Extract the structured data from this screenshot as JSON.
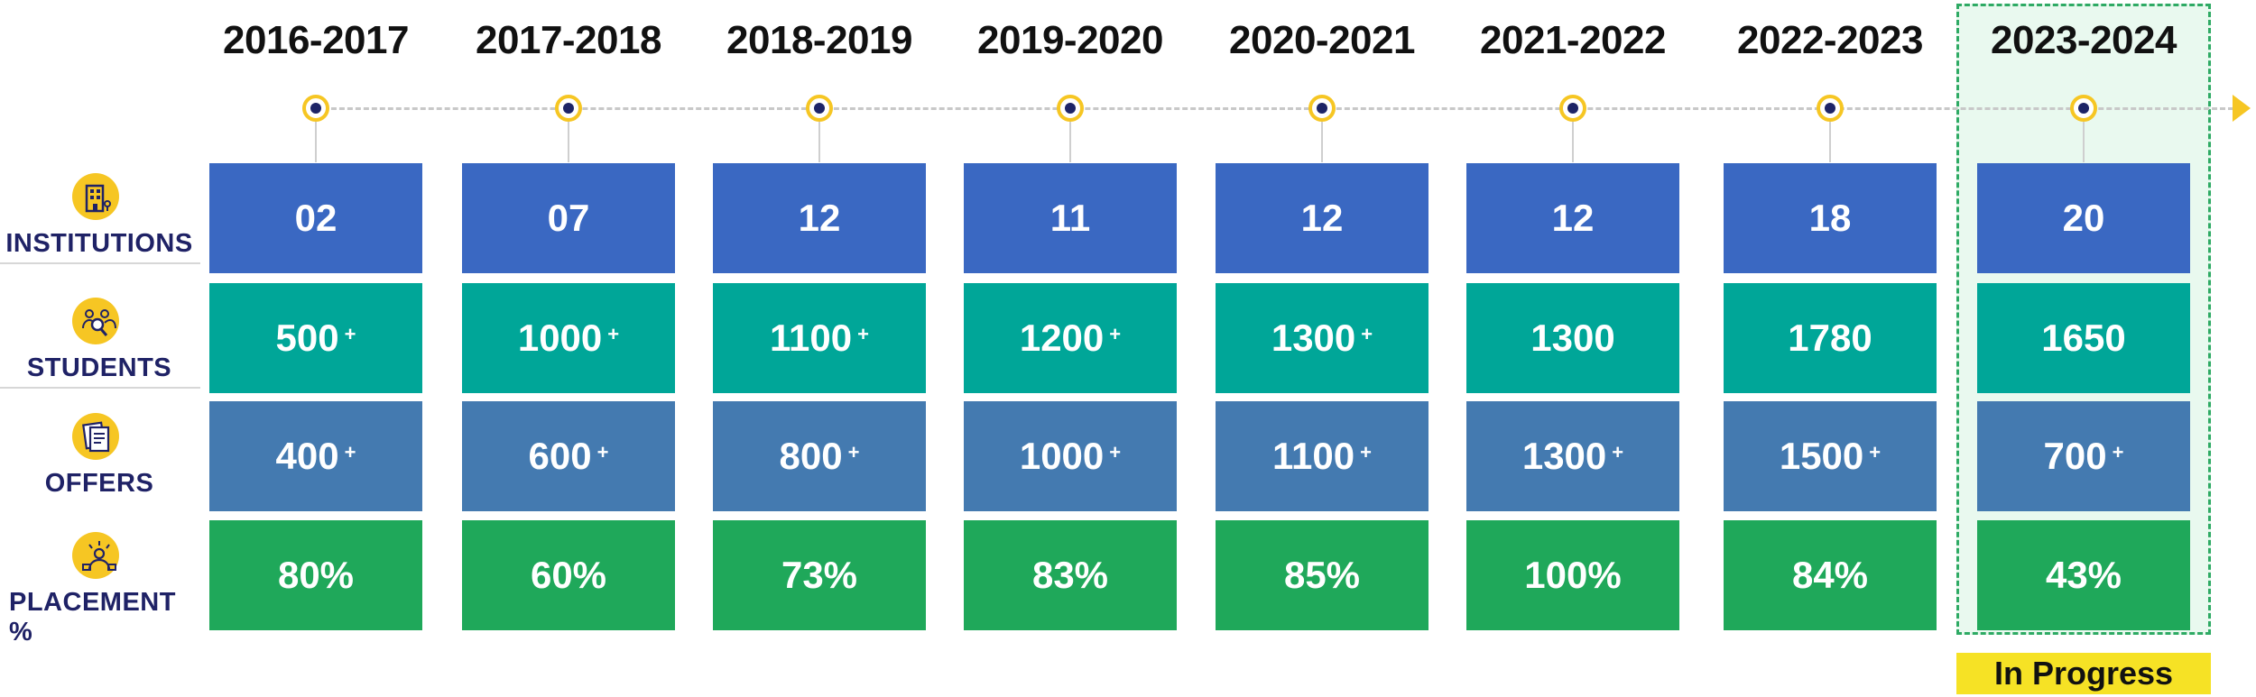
{
  "status_label": "In Progress",
  "years": [
    "2016-2017",
    "2017-2018",
    "2018-2019",
    "2019-2020",
    "2020-2021",
    "2021-2022",
    "2022-2023",
    "2023-2024"
  ],
  "rows": [
    {
      "label": "INSTITUTIONS",
      "icon": "building-icon",
      "values": [
        "02",
        "07",
        "12",
        "11",
        "12",
        "12",
        "18",
        "20"
      ],
      "plus": [
        "",
        "",
        "",
        "",
        "",
        "",
        "",
        ""
      ]
    },
    {
      "label": "STUDENTS",
      "icon": "students-search-icon",
      "values": [
        "500",
        "1000",
        "1100",
        "1200",
        "1300",
        "1300",
        "1780",
        "1650"
      ],
      "plus": [
        "+",
        "+",
        "+",
        "+",
        "+",
        "",
        "",
        ""
      ]
    },
    {
      "label": "OFFERS",
      "icon": "document-icon",
      "values": [
        "400",
        "600",
        "800",
        "1000",
        "1100",
        "1300",
        "1500",
        "700"
      ],
      "plus": [
        "+",
        "+",
        "+",
        "+",
        "+",
        "+",
        "+",
        "+"
      ]
    },
    {
      "label": "PLACEMENT %",
      "icon": "placement-person-icon",
      "values": [
        "80%",
        "60%",
        "73%",
        "83%",
        "85%",
        "100%",
        "84%",
        "43%"
      ],
      "plus": [
        "",
        "",
        "",
        "",
        "",
        "",
        "",
        ""
      ]
    }
  ],
  "colors": {
    "institutions": "#3a68c2",
    "students": "#00a698",
    "offers": "#447ab0",
    "placement": "#1fa85a",
    "accent": "#f6c623",
    "label_text": "#1f2266"
  }
}
